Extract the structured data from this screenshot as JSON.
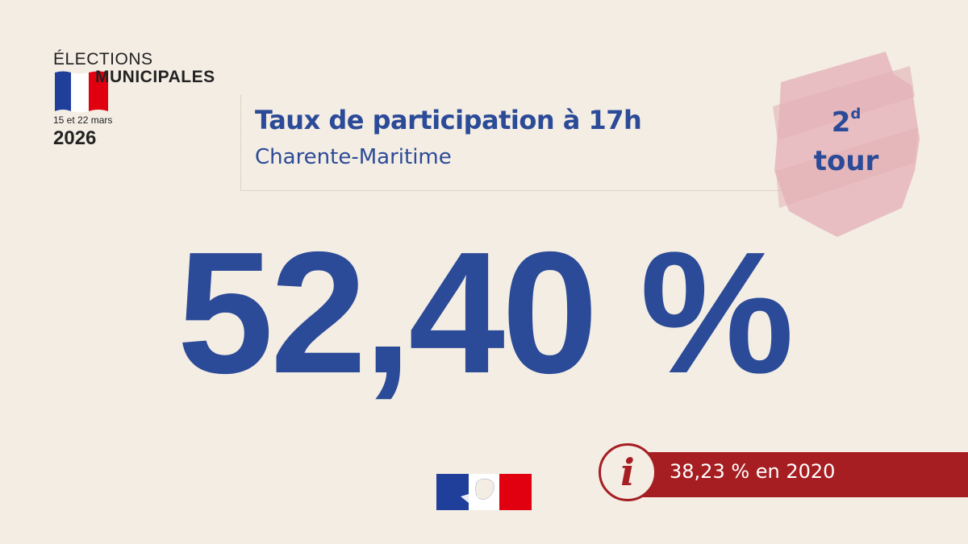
{
  "logo": {
    "line1": "ÉLECTIONS",
    "line2": "MUNICIPALES",
    "dates": "15 et 22 mars",
    "year": "2026"
  },
  "header": {
    "title": "Taux de participation à 17h",
    "subtitle": "Charente-Maritime"
  },
  "badge": {
    "number": "2",
    "suffix": "d",
    "word": "tour"
  },
  "main": {
    "value": "52,40 %"
  },
  "info": {
    "icon": "info-icon",
    "text": "38,23 % en 2020"
  },
  "colors": {
    "background": "#f3ede4",
    "primary_blue": "#2b4a97",
    "badge_pink": "#e8bcc0",
    "info_red": "#a61e22",
    "flag_blue": "#1f3f9a",
    "flag_red": "#e1000f"
  }
}
